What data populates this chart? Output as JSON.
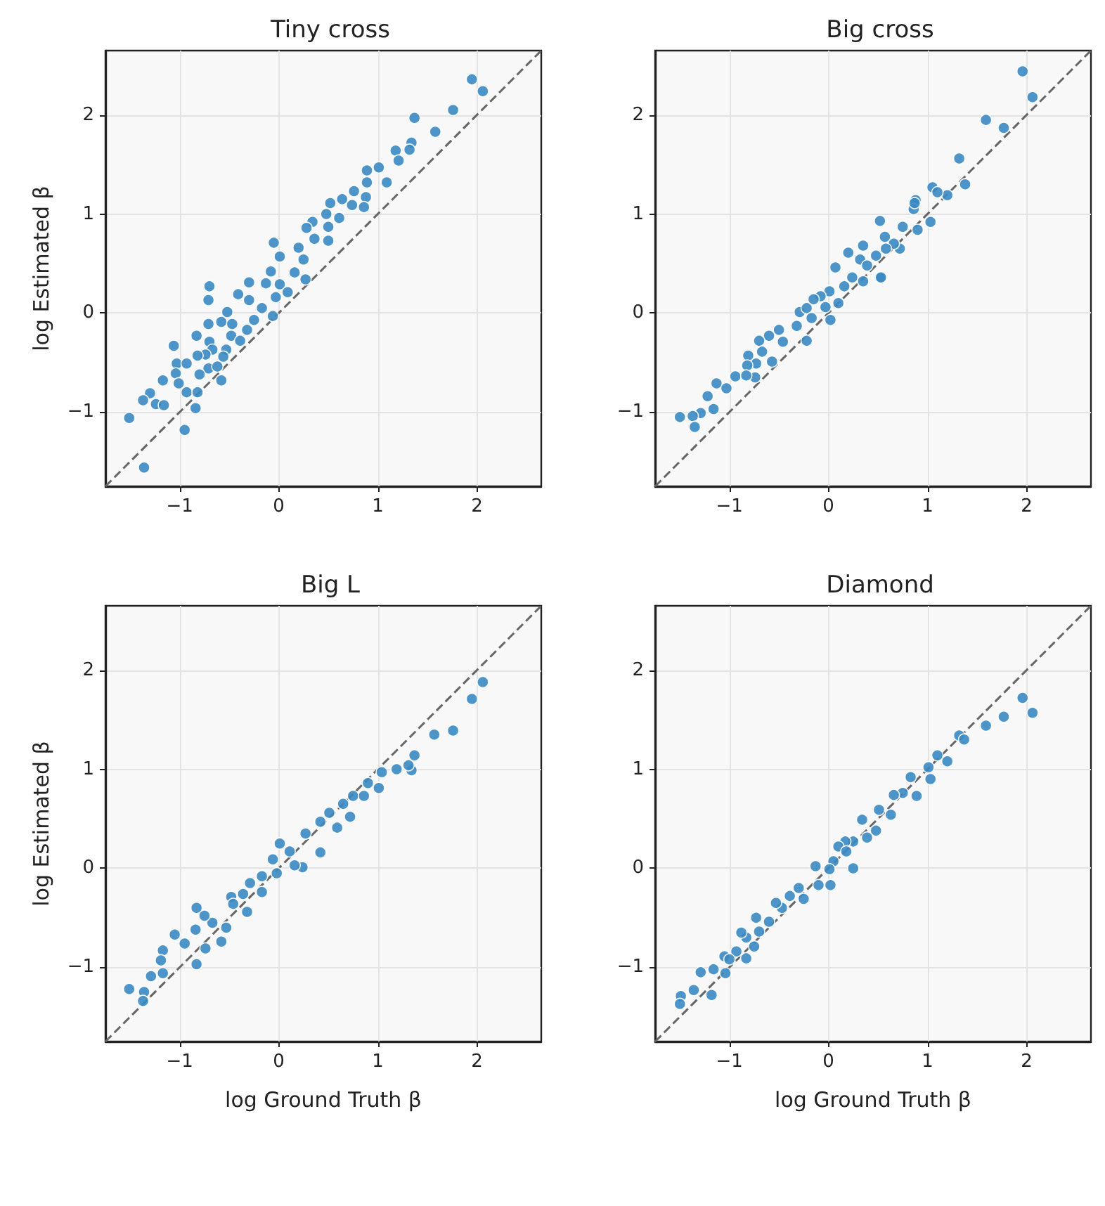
{
  "chart_data": [
    {
      "type": "scatter",
      "title": "Tiny cross",
      "ylabel": "log Estimated β",
      "xlim": [
        -1.75,
        2.65
      ],
      "ylim": [
        -1.75,
        2.65
      ],
      "xticks": [
        -1,
        0,
        1,
        2
      ],
      "yticks": [
        -1,
        0,
        1,
        2
      ],
      "grid": true,
      "marker": "circle",
      "series": [
        {
          "color": "#3a88c2",
          "x": [
            1.95,
            2.06,
            1.37,
            1.76,
            1.58,
            1.34,
            1.32,
            1.18,
            1.21,
            1.01,
            0.89,
            0.89,
            1.09,
            0.76,
            0.64,
            0.88,
            0.74,
            0.86,
            0.52,
            0.48,
            0.61,
            0.34,
            0.28,
            0.5,
            0.36,
            0.5,
            -0.05,
            0.2,
            0.25,
            0.01,
            0.16,
            0.27,
            -0.08,
            0.01,
            -0.13,
            -0.3,
            -0.03,
            0.09,
            -0.41,
            -0.7,
            -0.71,
            -0.3,
            -0.17,
            -0.25,
            -0.06,
            -0.52,
            -0.71,
            -0.58,
            -0.47,
            -0.32,
            -0.48,
            -0.83,
            -0.7,
            -0.39,
            -1.06,
            -0.67,
            -0.53,
            -0.74,
            -0.82,
            -1.03,
            -0.93,
            -0.56,
            -0.71,
            -0.62,
            -0.8,
            -1.04,
            -0.58,
            -1.17,
            -1.01,
            -1.3,
            -1.37,
            -1.24,
            -1.16,
            -0.93,
            -0.82,
            -0.84,
            -1.51,
            -0.95,
            -1.36
          ],
          "values": [
            2.36,
            2.24,
            1.97,
            2.05,
            1.83,
            1.72,
            1.65,
            1.64,
            1.54,
            1.47,
            1.44,
            1.32,
            1.32,
            1.23,
            1.15,
            1.17,
            1.09,
            1.07,
            1.11,
            1.0,
            0.96,
            0.92,
            0.86,
            0.87,
            0.75,
            0.73,
            0.71,
            0.66,
            0.54,
            0.57,
            0.41,
            0.34,
            0.42,
            0.29,
            0.3,
            0.31,
            0.16,
            0.21,
            0.19,
            0.27,
            0.13,
            0.13,
            0.05,
            -0.07,
            -0.03,
            0.01,
            -0.11,
            -0.09,
            -0.11,
            -0.17,
            -0.23,
            -0.23,
            -0.29,
            -0.28,
            -0.33,
            -0.37,
            -0.37,
            -0.42,
            -0.43,
            -0.51,
            -0.51,
            -0.44,
            -0.56,
            -0.54,
            -0.62,
            -0.61,
            -0.68,
            -0.68,
            -0.71,
            -0.81,
            -0.88,
            -0.92,
            -0.93,
            -0.8,
            -0.8,
            -0.96,
            -1.06,
            -1.18,
            -1.56
          ]
        },
        {
          "type": "line",
          "color": "#666666",
          "line_style": "dashed",
          "marker": "none",
          "x": [
            -1.75,
            2.65
          ],
          "values": [
            -1.75,
            2.65
          ]
        }
      ]
    },
    {
      "type": "scatter",
      "title": "Big cross",
      "xlim": [
        -1.75,
        2.65
      ],
      "ylim": [
        -1.75,
        2.65
      ],
      "xticks": [
        -1,
        0,
        1,
        2
      ],
      "yticks": [
        -1,
        0,
        1,
        2
      ],
      "grid": true,
      "marker": "circle",
      "series": [
        {
          "color": "#3a88c2",
          "x": [
            1.96,
            2.06,
            1.59,
            1.77,
            1.32,
            1.38,
            1.05,
            1.2,
            1.1,
            0.88,
            0.86,
            1.03,
            0.9,
            0.52,
            0.75,
            0.57,
            0.72,
            0.66,
            0.58,
            0.35,
            0.2,
            0.32,
            0.48,
            0.07,
            0.39,
            0.24,
            0.52,
            0.16,
            0.35,
            0.01,
            -0.08,
            -0.15,
            0.1,
            -0.03,
            -0.29,
            -0.22,
            0.02,
            -0.17,
            -0.32,
            -0.22,
            -0.5,
            -0.6,
            -0.46,
            -0.7,
            -0.81,
            -0.67,
            -0.57,
            -0.73,
            -0.82,
            -0.94,
            -0.74,
            -0.83,
            -1.13,
            -1.03,
            -1.22,
            -1.16,
            -1.29,
            -1.37,
            -1.5,
            -1.35,
            0.87,
            0.53
          ],
          "values": [
            2.44,
            2.18,
            1.95,
            1.87,
            1.56,
            1.3,
            1.27,
            1.19,
            1.22,
            1.14,
            1.05,
            0.92,
            0.84,
            0.93,
            0.87,
            0.77,
            0.65,
            0.7,
            0.65,
            0.68,
            0.61,
            0.54,
            0.58,
            0.46,
            0.48,
            0.36,
            0.36,
            0.27,
            0.32,
            0.22,
            0.17,
            0.14,
            0.1,
            0.06,
            0.01,
            0.05,
            -0.07,
            -0.05,
            -0.13,
            -0.28,
            -0.17,
            -0.23,
            -0.29,
            -0.28,
            -0.43,
            -0.39,
            -0.49,
            -0.51,
            -0.53,
            -0.64,
            -0.65,
            -0.63,
            -0.71,
            -0.76,
            -0.84,
            -0.97,
            -1.01,
            -1.04,
            -1.05,
            -1.15,
            1.11,
            0.36
          ]
        },
        {
          "type": "line",
          "color": "#666666",
          "line_style": "dashed",
          "marker": "none",
          "x": [
            -1.75,
            2.65
          ],
          "values": [
            -1.75,
            2.65
          ]
        }
      ]
    },
    {
      "type": "scatter",
      "title": "Big L",
      "xlabel": "log Ground Truth β",
      "ylabel": "log Estimated β",
      "xlim": [
        -1.75,
        2.65
      ],
      "ylim": [
        -1.75,
        2.65
      ],
      "xticks": [
        -1,
        0,
        1,
        2
      ],
      "yticks": [
        -1,
        0,
        1,
        2
      ],
      "grid": true,
      "marker": "circle",
      "series": [
        {
          "color": "#3a88c2",
          "x": [
            2.06,
            1.95,
            1.76,
            1.57,
            1.37,
            1.34,
            1.31,
            1.19,
            1.04,
            1.01,
            0.9,
            0.86,
            0.75,
            0.72,
            0.65,
            0.51,
            0.59,
            0.42,
            0.27,
            0.42,
            0.24,
            0.16,
            0.01,
            0.11,
            -0.06,
            -0.02,
            -0.17,
            -0.29,
            -0.17,
            -0.36,
            -0.48,
            -0.32,
            -0.53,
            -0.58,
            -0.67,
            -0.83,
            -0.75,
            -0.84,
            -0.74,
            -1.05,
            -0.95,
            -1.17,
            -1.19,
            -0.83,
            -1.29,
            -1.17,
            -1.51,
            -1.36,
            -1.37,
            -0.46
          ],
          "values": [
            1.88,
            1.71,
            1.39,
            1.35,
            1.14,
            0.99,
            1.04,
            1.0,
            0.97,
            0.81,
            0.86,
            0.73,
            0.73,
            0.52,
            0.65,
            0.56,
            0.41,
            0.47,
            0.35,
            0.16,
            0.01,
            0.03,
            0.25,
            0.17,
            0.09,
            -0.05,
            -0.08,
            -0.15,
            -0.24,
            -0.26,
            -0.29,
            -0.44,
            -0.6,
            -0.74,
            -0.55,
            -0.4,
            -0.48,
            -0.62,
            -0.81,
            -0.67,
            -0.76,
            -0.83,
            -0.93,
            -0.97,
            -1.09,
            -1.06,
            -1.22,
            -1.25,
            -1.34,
            -0.36
          ]
        },
        {
          "type": "line",
          "color": "#666666",
          "line_style": "dashed",
          "marker": "none",
          "x": [
            -1.75,
            2.65
          ],
          "values": [
            -1.75,
            2.65
          ]
        }
      ]
    },
    {
      "type": "scatter",
      "title": "Diamond",
      "xlabel": "log Ground Truth β",
      "xlim": [
        -1.75,
        2.65
      ],
      "ylim": [
        -1.75,
        2.65
      ],
      "xticks": [
        -1,
        0,
        1,
        2
      ],
      "yticks": [
        -1,
        0,
        1,
        2
      ],
      "grid": true,
      "marker": "circle",
      "series": [
        {
          "color": "#3a88c2",
          "x": [
            1.96,
            2.06,
            1.77,
            1.59,
            1.32,
            1.37,
            1.2,
            1.1,
            1.01,
            1.03,
            0.83,
            0.89,
            0.75,
            0.66,
            0.63,
            0.51,
            0.34,
            0.48,
            0.39,
            0.25,
            0.17,
            0.1,
            0.18,
            0.05,
            0.25,
            0.01,
            -0.13,
            0.02,
            -0.1,
            -0.25,
            -0.3,
            -0.39,
            -0.47,
            -0.53,
            -0.6,
            -0.73,
            -0.7,
            -0.83,
            -0.88,
            -0.75,
            -0.83,
            -0.93,
            -1.05,
            -1.04,
            -1.16,
            -1.29,
            -1.18,
            -1.36,
            -1.49,
            -1.5,
            -1.0
          ],
          "values": [
            1.72,
            1.57,
            1.53,
            1.44,
            1.34,
            1.3,
            1.08,
            1.14,
            1.02,
            0.9,
            0.92,
            0.73,
            0.76,
            0.74,
            0.54,
            0.59,
            0.49,
            0.38,
            0.31,
            0.27,
            0.27,
            0.22,
            0.17,
            0.07,
            0.0,
            -0.01,
            0.02,
            -0.17,
            -0.17,
            -0.31,
            -0.2,
            -0.28,
            -0.4,
            -0.35,
            -0.54,
            -0.5,
            -0.64,
            -0.7,
            -0.65,
            -0.79,
            -0.91,
            -0.84,
            -0.89,
            -1.06,
            -1.02,
            -1.05,
            -1.28,
            -1.23,
            -1.29,
            -1.37,
            -0.92
          ]
        },
        {
          "type": "line",
          "color": "#666666",
          "line_style": "dashed",
          "marker": "none",
          "x": [
            -1.75,
            2.65
          ],
          "values": [
            -1.75,
            2.65
          ]
        }
      ]
    }
  ]
}
